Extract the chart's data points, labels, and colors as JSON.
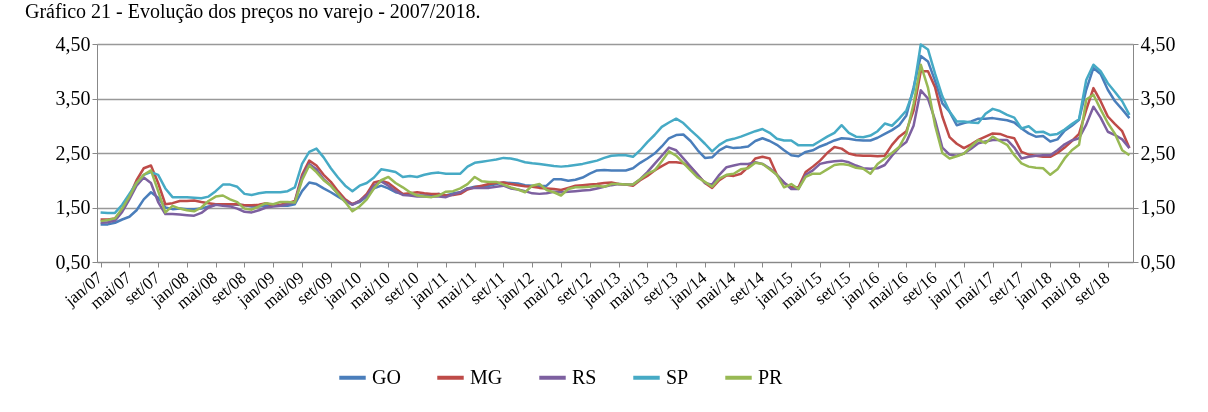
{
  "chart_data": {
    "type": "line",
    "title": "Gráfico 21 - Evolução dos preços no varejo - 2007/2018.",
    "categories": [
      "jan/07",
      null,
      null,
      null,
      "mai/07",
      null,
      null,
      null,
      "set/07",
      null,
      null,
      null,
      "jan/08",
      null,
      null,
      null,
      "mai/08",
      null,
      null,
      null,
      "set/08",
      null,
      null,
      null,
      "jan/09",
      null,
      null,
      null,
      "mai/09",
      null,
      null,
      null,
      "set/09",
      null,
      null,
      null,
      "jan/10",
      null,
      null,
      null,
      "mai/10",
      null,
      null,
      null,
      "set/10",
      null,
      null,
      null,
      "jan/11",
      null,
      null,
      null,
      "mai/11",
      null,
      null,
      null,
      "set/11",
      null,
      null,
      null,
      "jan/12",
      null,
      null,
      null,
      "mai/12",
      null,
      null,
      null,
      "set/12",
      null,
      null,
      null,
      "jan/13",
      null,
      null,
      null,
      "mai/13",
      null,
      null,
      null,
      "set/13",
      null,
      null,
      null,
      "jan/14",
      null,
      null,
      null,
      "mai/14",
      null,
      null,
      null,
      "set/14",
      null,
      null,
      null,
      "jan/15",
      null,
      null,
      null,
      "mai/15",
      null,
      null,
      null,
      "set/15",
      null,
      null,
      null,
      "jan/16",
      null,
      null,
      null,
      "mai/16",
      null,
      null,
      null,
      "set/16",
      null,
      null,
      null,
      "jan/17",
      null,
      null,
      null,
      "mai/17",
      null,
      null,
      null,
      "set/17",
      null,
      null,
      null,
      "jan/18",
      null,
      null,
      null,
      "mai/18",
      null,
      null,
      null,
      "set/18",
      null,
      null,
      null
    ],
    "series": [
      {
        "name": "GO",
        "color": "#4a7ebb",
        "values": [
          1.19,
          1.19,
          1.22,
          1.28,
          1.33,
          1.45,
          1.65,
          1.78,
          1.68,
          1.5,
          1.47,
          1.48,
          1.47,
          1.47,
          1.48,
          1.52,
          1.55,
          1.56,
          1.56,
          1.55,
          1.54,
          1.52,
          1.52,
          1.53,
          1.53,
          1.53,
          1.53,
          1.56,
          1.8,
          1.96,
          1.93,
          1.85,
          1.78,
          1.7,
          1.62,
          1.56,
          1.6,
          1.7,
          1.85,
          1.9,
          1.85,
          1.78,
          1.75,
          1.73,
          1.72,
          1.72,
          1.73,
          1.75,
          1.72,
          1.76,
          1.78,
          1.85,
          1.88,
          1.89,
          1.9,
          1.93,
          1.96,
          1.95,
          1.94,
          1.91,
          1.9,
          1.89,
          1.9,
          2.02,
          2.02,
          1.99,
          2.01,
          2.05,
          2.12,
          2.18,
          2.19,
          2.18,
          2.18,
          2.18,
          2.22,
          2.32,
          2.4,
          2.49,
          2.62,
          2.77,
          2.83,
          2.84,
          2.72,
          2.55,
          2.41,
          2.42,
          2.55,
          2.62,
          2.59,
          2.6,
          2.62,
          2.72,
          2.77,
          2.72,
          2.65,
          2.55,
          2.46,
          2.44,
          2.52,
          2.55,
          2.62,
          2.67,
          2.73,
          2.77,
          2.76,
          2.74,
          2.73,
          2.73,
          2.78,
          2.85,
          2.92,
          3.01,
          3.19,
          3.7,
          4.28,
          4.18,
          3.82,
          3.41,
          3.26,
          3.01,
          3.05,
          3.08,
          3.13,
          3.13,
          3.14,
          3.12,
          3.1,
          3.06,
          2.95,
          2.86,
          2.8,
          2.81,
          2.71,
          2.75,
          2.91,
          3.0,
          3.11,
          3.66,
          4.06,
          3.95,
          3.66,
          3.45,
          3.3,
          3.14
        ]
      },
      {
        "name": "MG",
        "color": "#be4b48",
        "values": [
          1.28,
          1.28,
          1.3,
          1.45,
          1.7,
          2.0,
          2.22,
          2.27,
          1.95,
          1.56,
          1.58,
          1.62,
          1.62,
          1.63,
          1.6,
          1.58,
          1.56,
          1.56,
          1.56,
          1.56,
          1.54,
          1.54,
          1.55,
          1.58,
          1.53,
          1.55,
          1.58,
          1.62,
          2.1,
          2.36,
          2.27,
          2.1,
          1.97,
          1.8,
          1.65,
          1.56,
          1.62,
          1.75,
          1.96,
          1.99,
          1.95,
          1.85,
          1.75,
          1.76,
          1.78,
          1.76,
          1.75,
          1.75,
          1.72,
          1.73,
          1.75,
          1.83,
          1.87,
          1.9,
          1.93,
          1.95,
          1.96,
          1.93,
          1.91,
          1.89,
          1.88,
          1.86,
          1.85,
          1.84,
          1.82,
          1.86,
          1.9,
          1.91,
          1.92,
          1.93,
          1.95,
          1.96,
          1.93,
          1.92,
          1.9,
          2.0,
          2.08,
          2.18,
          2.26,
          2.33,
          2.33,
          2.31,
          2.24,
          2.1,
          1.95,
          1.86,
          2.0,
          2.09,
          2.08,
          2.12,
          2.24,
          2.4,
          2.43,
          2.4,
          2.1,
          1.95,
          1.87,
          1.87,
          2.15,
          2.25,
          2.36,
          2.5,
          2.61,
          2.58,
          2.49,
          2.46,
          2.45,
          2.45,
          2.44,
          2.45,
          2.65,
          2.8,
          2.9,
          3.28,
          4.0,
          4.0,
          3.7,
          3.17,
          2.79,
          2.67,
          2.59,
          2.66,
          2.74,
          2.8,
          2.86,
          2.85,
          2.8,
          2.77,
          2.52,
          2.47,
          2.45,
          2.43,
          2.43,
          2.5,
          2.6,
          2.72,
          2.85,
          3.29,
          3.69,
          3.45,
          3.17,
          3.03,
          2.9,
          2.59
        ]
      },
      {
        "name": "RS",
        "color": "#7d60a0",
        "values": [
          1.22,
          1.23,
          1.26,
          1.42,
          1.65,
          1.9,
          2.05,
          1.95,
          1.6,
          1.38,
          1.38,
          1.37,
          1.36,
          1.35,
          1.4,
          1.5,
          1.55,
          1.53,
          1.52,
          1.48,
          1.42,
          1.41,
          1.45,
          1.5,
          1.52,
          1.53,
          1.56,
          1.6,
          2.05,
          2.3,
          2.2,
          2.02,
          1.9,
          1.75,
          1.62,
          1.55,
          1.62,
          1.72,
          1.9,
          1.98,
          1.9,
          1.8,
          1.73,
          1.72,
          1.7,
          1.7,
          1.7,
          1.7,
          1.69,
          1.74,
          1.78,
          1.85,
          1.86,
          1.86,
          1.86,
          1.88,
          1.9,
          1.85,
          1.83,
          1.8,
          1.76,
          1.75,
          1.76,
          1.79,
          1.78,
          1.79,
          1.8,
          1.81,
          1.82,
          1.85,
          1.88,
          1.91,
          1.93,
          1.92,
          1.92,
          2.02,
          2.15,
          2.3,
          2.45,
          2.6,
          2.55,
          2.4,
          2.25,
          2.1,
          1.95,
          1.92,
          2.1,
          2.24,
          2.27,
          2.3,
          2.3,
          2.33,
          2.3,
          2.22,
          2.1,
          1.96,
          1.84,
          1.84,
          2.1,
          2.18,
          2.3,
          2.33,
          2.35,
          2.36,
          2.33,
          2.27,
          2.22,
          2.21,
          2.22,
          2.28,
          2.45,
          2.6,
          2.7,
          3.0,
          3.65,
          3.5,
          3.1,
          2.6,
          2.47,
          2.45,
          2.49,
          2.58,
          2.68,
          2.71,
          2.74,
          2.74,
          2.74,
          2.6,
          2.4,
          2.43,
          2.45,
          2.46,
          2.46,
          2.55,
          2.66,
          2.73,
          2.77,
          3.02,
          3.35,
          3.15,
          2.89,
          2.83,
          2.75,
          2.59
        ]
      },
      {
        "name": "SP",
        "color": "#46aac5",
        "values": [
          1.41,
          1.4,
          1.4,
          1.55,
          1.75,
          1.95,
          2.1,
          2.15,
          2.1,
          1.85,
          1.69,
          1.69,
          1.69,
          1.68,
          1.67,
          1.7,
          1.8,
          1.92,
          1.92,
          1.88,
          1.75,
          1.73,
          1.76,
          1.78,
          1.78,
          1.78,
          1.8,
          1.87,
          2.3,
          2.52,
          2.58,
          2.42,
          2.22,
          2.05,
          1.9,
          1.8,
          1.9,
          1.95,
          2.05,
          2.2,
          2.18,
          2.15,
          2.06,
          2.08,
          2.06,
          2.1,
          2.13,
          2.14,
          2.12,
          2.12,
          2.12,
          2.25,
          2.32,
          2.34,
          2.36,
          2.38,
          2.41,
          2.4,
          2.37,
          2.33,
          2.31,
          2.3,
          2.28,
          2.26,
          2.25,
          2.26,
          2.28,
          2.3,
          2.33,
          2.36,
          2.41,
          2.45,
          2.46,
          2.46,
          2.43,
          2.55,
          2.7,
          2.83,
          2.98,
          3.06,
          3.13,
          3.05,
          2.92,
          2.8,
          2.67,
          2.53,
          2.65,
          2.73,
          2.76,
          2.8,
          2.85,
          2.9,
          2.94,
          2.87,
          2.76,
          2.73,
          2.73,
          2.64,
          2.64,
          2.64,
          2.72,
          2.8,
          2.87,
          3.01,
          2.87,
          2.8,
          2.79,
          2.82,
          2.9,
          3.04,
          3.0,
          3.13,
          3.28,
          3.65,
          4.49,
          4.4,
          3.95,
          3.54,
          3.26,
          3.08,
          3.08,
          3.06,
          3.05,
          3.22,
          3.31,
          3.27,
          3.2,
          3.15,
          2.95,
          2.99,
          2.88,
          2.89,
          2.83,
          2.85,
          2.93,
          3.03,
          3.12,
          3.84,
          4.12,
          4.0,
          3.78,
          3.62,
          3.45,
          3.2
        ]
      },
      {
        "name": "PR",
        "color": "#98b954",
        "values": [
          1.25,
          1.27,
          1.3,
          1.48,
          1.7,
          1.95,
          2.1,
          2.18,
          1.8,
          1.41,
          1.53,
          1.48,
          1.45,
          1.43,
          1.5,
          1.62,
          1.7,
          1.72,
          1.65,
          1.6,
          1.48,
          1.46,
          1.52,
          1.58,
          1.56,
          1.6,
          1.6,
          1.59,
          2.0,
          2.27,
          2.15,
          2.0,
          1.9,
          1.75,
          1.6,
          1.43,
          1.52,
          1.65,
          1.85,
          2.0,
          2.06,
          1.95,
          1.87,
          1.78,
          1.72,
          1.7,
          1.69,
          1.72,
          1.79,
          1.8,
          1.85,
          1.93,
          2.06,
          1.98,
          1.97,
          1.97,
          1.92,
          1.87,
          1.83,
          1.78,
          1.9,
          1.93,
          1.82,
          1.78,
          1.72,
          1.84,
          1.87,
          1.87,
          1.88,
          1.9,
          1.88,
          1.93,
          1.93,
          1.92,
          1.92,
          2.02,
          2.12,
          2.18,
          2.35,
          2.53,
          2.45,
          2.32,
          2.18,
          2.05,
          1.97,
          1.88,
          2.03,
          2.1,
          2.12,
          2.2,
          2.22,
          2.32,
          2.3,
          2.2,
          2.1,
          1.87,
          1.93,
          1.84,
          2.06,
          2.12,
          2.12,
          2.2,
          2.28,
          2.3,
          2.28,
          2.23,
          2.21,
          2.12,
          2.3,
          2.4,
          2.5,
          2.61,
          2.85,
          3.4,
          4.12,
          3.7,
          3.0,
          2.5,
          2.4,
          2.44,
          2.49,
          2.62,
          2.74,
          2.68,
          2.8,
          2.72,
          2.65,
          2.46,
          2.31,
          2.25,
          2.23,
          2.22,
          2.1,
          2.2,
          2.4,
          2.55,
          2.65,
          3.48,
          3.57,
          3.3,
          3.05,
          2.85,
          2.55,
          2.46
        ]
      }
    ],
    "ylim": [
      0.5,
      4.5
    ],
    "yticks": [
      {
        "value": 0.5,
        "label": "0,50"
      },
      {
        "value": 1.5,
        "label": "1,50"
      },
      {
        "value": 2.5,
        "label": "2,50"
      },
      {
        "value": 3.5,
        "label": "3,50"
      },
      {
        "value": 4.5,
        "label": "4,50"
      }
    ],
    "y2lim": [
      0.5,
      4.5
    ],
    "y2ticks": [
      {
        "value": 0.5,
        "label": "0,50"
      },
      {
        "value": 1.5,
        "label": "1,50"
      },
      {
        "value": 2.5,
        "label": "2,50"
      },
      {
        "value": 3.5,
        "label": "3,50"
      },
      {
        "value": 4.5,
        "label": "4,50"
      }
    ],
    "grid": "y",
    "legend": "bottom"
  }
}
